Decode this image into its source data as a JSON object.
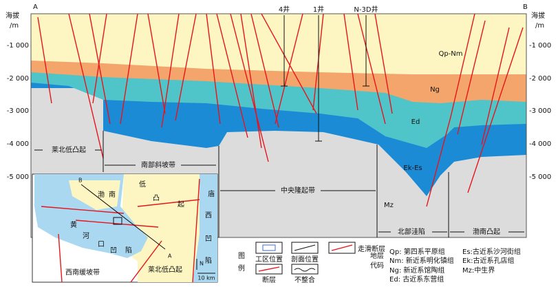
{
  "profile": {
    "ends": [
      "A",
      "B"
    ],
    "axis_title": [
      "海拔",
      "/m"
    ],
    "ticks": [
      "-1 000",
      "-2 000",
      "-3 000",
      "-4 000",
      "-5 000"
    ],
    "wells": [
      "4井",
      "1井",
      "N-3D井"
    ],
    "layers": [
      "Qp-Nm",
      "Ng",
      "Ed",
      "Ek-Es",
      "Mz"
    ],
    "zones": [
      "莱北低凸起",
      "南部斜坡带",
      "中央隆起带",
      "北部洼陷",
      "渤南凸起"
    ]
  },
  "inset": {
    "labels": [
      "渤",
      "南",
      "低",
      "凸",
      "起",
      "庙",
      "西",
      "凹",
      "陷",
      "黄",
      "河",
      "口",
      "凹",
      "陷",
      "莱北低凸起",
      "西南缓坡带",
      "A",
      "B",
      "N",
      "10 km"
    ]
  },
  "legend": {
    "title": [
      "图",
      "例"
    ],
    "items": [
      "工区位置",
      "剖面位置",
      "走滑断层",
      "断层",
      "不整合"
    ],
    "code_title": [
      "地层",
      "代码"
    ],
    "codes": [
      "Qp: 第四系平原组",
      "Nm: 新近系明化镇组",
      "Ng: 新近系馆陶组",
      "Ed: 古近系东营组",
      "Es:古近系沙河街组",
      "Ek:古近系孔店组",
      "Mz:中生界"
    ]
  }
}
